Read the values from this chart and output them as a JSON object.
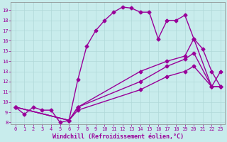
{
  "xlabel": "Windchill (Refroidissement éolien,°C)",
  "xlim": [
    -0.5,
    23.5
  ],
  "ylim": [
    7.8,
    19.8
  ],
  "xticks": [
    0,
    1,
    2,
    3,
    4,
    5,
    6,
    7,
    8,
    9,
    10,
    11,
    12,
    13,
    14,
    15,
    16,
    17,
    18,
    19,
    20,
    21,
    22,
    23
  ],
  "yticks": [
    8,
    9,
    10,
    11,
    12,
    13,
    14,
    15,
    16,
    17,
    18,
    19
  ],
  "bg_color": "#c8ecec",
  "grid_color": "#b0d8d8",
  "line_color": "#990099",
  "line1_x": [
    0,
    1,
    2,
    3,
    4,
    5,
    6,
    7,
    8,
    9,
    10,
    11,
    12,
    13,
    14,
    15,
    16,
    17,
    18,
    19,
    20,
    21,
    22,
    23
  ],
  "line1_y": [
    9.5,
    8.8,
    9.5,
    9.2,
    9.2,
    8.0,
    8.2,
    12.2,
    15.5,
    17.0,
    18.0,
    18.8,
    19.3,
    19.2,
    18.8,
    18.8,
    16.2,
    18.0,
    18.0,
    18.5,
    16.2,
    15.2,
    13.0,
    11.5
  ],
  "line2_x": [
    0,
    6,
    7,
    14,
    17,
    19,
    20,
    22,
    23
  ],
  "line2_y": [
    9.5,
    8.2,
    9.5,
    13.0,
    14.0,
    14.5,
    16.2,
    11.5,
    13.0
  ],
  "line3_x": [
    0,
    6,
    7,
    14,
    17,
    19,
    20,
    22,
    23
  ],
  "line3_y": [
    9.5,
    8.2,
    9.5,
    12.0,
    13.5,
    14.2,
    14.8,
    11.5,
    11.5
  ],
  "line4_x": [
    0,
    6,
    7,
    14,
    17,
    19,
    20,
    22,
    23
  ],
  "line4_y": [
    9.5,
    8.2,
    9.2,
    11.2,
    12.5,
    13.0,
    13.5,
    11.5,
    11.5
  ],
  "marker": "D",
  "markersize": 2.5,
  "linewidth": 1.0,
  "tick_fontsize": 5.0,
  "label_fontsize": 6.0
}
